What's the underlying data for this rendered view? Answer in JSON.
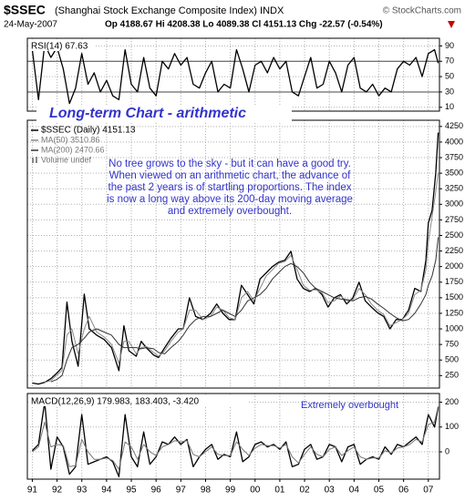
{
  "header": {
    "symbol": "$SSEC",
    "name": "(Shanghai Stock Exchange Composite Index) INDX",
    "source": "© StockCharts.com",
    "date": "24-May-2007",
    "quote": "Op 4188.67 Hi 4208.38 Lo 4089.38 Cl 4151.13 Chg -22.57 (-0.54%)"
  },
  "chart_data": [
    {
      "type": "line",
      "title": "RSI(14) 67.63",
      "x": [
        1991,
        1991.25,
        1991.5,
        1991.75,
        1992,
        1992.25,
        1992.5,
        1992.75,
        1993,
        1993.25,
        1993.5,
        1993.75,
        1994,
        1994.25,
        1994.5,
        1994.75,
        1995,
        1995.25,
        1995.5,
        1995.75,
        1996,
        1996.25,
        1996.5,
        1996.75,
        1997,
        1997.25,
        1997.5,
        1997.75,
        1998,
        1998.25,
        1998.5,
        1998.75,
        1999,
        1999.25,
        1999.5,
        1999.75,
        2000,
        2000.25,
        2000.5,
        2000.75,
        2001,
        2001.25,
        2001.5,
        2001.75,
        2002,
        2002.25,
        2002.5,
        2002.75,
        2003,
        2003.25,
        2003.5,
        2003.75,
        2004,
        2004.25,
        2004.5,
        2004.75,
        2005,
        2005.25,
        2005.5,
        2005.75,
        2006,
        2006.25,
        2006.5,
        2006.75,
        2007,
        2007.25,
        2007.4
      ],
      "series": [
        {
          "color": "#000000",
          "values": [
            85,
            20,
            92,
            75,
            88,
            60,
            15,
            35,
            80,
            40,
            55,
            30,
            45,
            25,
            20,
            85,
            40,
            30,
            75,
            35,
            25,
            70,
            60,
            80,
            65,
            75,
            40,
            35,
            55,
            70,
            30,
            40,
            35,
            85,
            60,
            30,
            65,
            70,
            55,
            75,
            60,
            70,
            30,
            25,
            50,
            75,
            35,
            40,
            70,
            55,
            30,
            65,
            75,
            35,
            30,
            40,
            25,
            35,
            30,
            60,
            70,
            65,
            75,
            50,
            80,
            85,
            67.63
          ]
        }
      ],
      "xlim": [
        1990.8,
        2007.45
      ],
      "ylim": [
        5,
        100
      ],
      "yticks": [
        10,
        30,
        50,
        70,
        90
      ],
      "grid": true
    },
    {
      "type": "line",
      "title": "Long-term Chart - arithmetic",
      "annotation": [
        "No tree grows to the sky - but it can have a good try.",
        "When viewed on an arithmetic chart, the advance of",
        "the past 2 years is of startling proportions. The index",
        "is now a long way above its 200-day moving average",
        "and extremely overbought."
      ],
      "legend_note": "Volume undef",
      "x": [
        1991.0,
        1991.25,
        1991.5,
        1991.75,
        1992.0,
        1992.2,
        1992.4,
        1992.6,
        1992.85,
        1993.1,
        1993.3,
        1993.6,
        1993.9,
        1994.2,
        1994.5,
        1994.7,
        1994.9,
        1995.2,
        1995.4,
        1995.6,
        1995.9,
        1996.1,
        1996.35,
        1996.6,
        1996.9,
        1997.1,
        1997.35,
        1997.6,
        1997.9,
        1998.2,
        1998.45,
        1998.7,
        1998.95,
        1999.2,
        1999.45,
        1999.7,
        1999.95,
        2000.2,
        2000.45,
        2000.7,
        2000.95,
        2001.2,
        2001.45,
        2001.7,
        2001.95,
        2002.2,
        2002.45,
        2002.7,
        2002.95,
        2003.2,
        2003.45,
        2003.7,
        2003.95,
        2004.2,
        2004.45,
        2004.7,
        2004.95,
        2005.2,
        2005.45,
        2005.7,
        2005.95,
        2006.2,
        2006.45,
        2006.7,
        2006.9,
        2007.0,
        2007.15,
        2007.3,
        2007.4
      ],
      "series": [
        {
          "name": "$SSEC (Daily) 4151.13",
          "color": "#000000",
          "values": [
            130,
            115,
            140,
            200,
            293,
            380,
            1429,
            800,
            400,
            1558,
            1000,
            900,
            830,
            700,
            330,
            1050,
            650,
            560,
            800,
            700,
            580,
            540,
            700,
            850,
            1000,
            1000,
            1500,
            1200,
            1150,
            1250,
            1400,
            1250,
            1150,
            1150,
            1700,
            1550,
            1400,
            1800,
            1900,
            2000,
            2070,
            2100,
            2245,
            1800,
            1650,
            1600,
            1650,
            1550,
            1350,
            1500,
            1550,
            1400,
            1500,
            1750,
            1450,
            1350,
            1260,
            1200,
            1000,
            1150,
            1150,
            1300,
            1650,
            1600,
            2100,
            2700,
            2900,
            3500,
            4151
          ]
        },
        {
          "name": "MA(50) 3510.86",
          "color": "#8a8a8a",
          "values": [
            null,
            null,
            140,
            170,
            260,
            330,
            900,
            1000,
            600,
            1000,
            1200,
            950,
            870,
            750,
            450,
            800,
            800,
            600,
            700,
            720,
            620,
            560,
            650,
            800,
            950,
            1000,
            1300,
            1300,
            1150,
            1200,
            1350,
            1300,
            1180,
            1150,
            1500,
            1600,
            1450,
            1650,
            1850,
            1950,
            2050,
            2080,
            2180,
            1950,
            1700,
            1620,
            1630,
            1580,
            1420,
            1450,
            1530,
            1450,
            1470,
            1650,
            1550,
            1400,
            1300,
            1230,
            1050,
            1100,
            1150,
            1250,
            1550,
            1620,
            1950,
            2400,
            2800,
            3200,
            3510
          ]
        },
        {
          "name": "MA(200) 2470.66",
          "color": "#333333",
          "values": [
            null,
            null,
            null,
            150,
            190,
            250,
            500,
            700,
            750,
            850,
            950,
            1000,
            950,
            900,
            750,
            700,
            700,
            700,
            680,
            700,
            680,
            620,
            600,
            700,
            800,
            900,
            1050,
            1150,
            1200,
            1200,
            1250,
            1300,
            1250,
            1200,
            1300,
            1450,
            1500,
            1550,
            1650,
            1800,
            1900,
            2000,
            2050,
            2000,
            1900,
            1750,
            1650,
            1600,
            1550,
            1500,
            1480,
            1470,
            1450,
            1500,
            1520,
            1480,
            1400,
            1330,
            1250,
            1180,
            1130,
            1150,
            1250,
            1400,
            1550,
            1700,
            1850,
            2100,
            2470
          ]
        }
      ],
      "xlim": [
        1990.8,
        2007.45
      ],
      "ylim": [
        50,
        4350
      ],
      "yticks": [
        250,
        500,
        750,
        1000,
        1250,
        1500,
        1750,
        2000,
        2250,
        2500,
        2750,
        3000,
        3250,
        3500,
        3750,
        4000,
        4250
      ],
      "grid": true
    },
    {
      "type": "line",
      "title": "MACD(12,26,9) 179.983, 183.403, -3.420",
      "annotation": "Extremely overbought",
      "x": [
        1991,
        1991.25,
        1991.5,
        1991.75,
        1992,
        1992.25,
        1992.5,
        1992.75,
        1993,
        1993.25,
        1993.5,
        1993.75,
        1994,
        1994.25,
        1994.5,
        1994.75,
        1995,
        1995.25,
        1995.5,
        1995.75,
        1996,
        1996.25,
        1996.5,
        1996.75,
        1997,
        1997.25,
        1997.5,
        1997.75,
        1998,
        1998.25,
        1998.5,
        1998.75,
        1999,
        1999.25,
        1999.5,
        1999.75,
        2000,
        2000.25,
        2000.5,
        2000.75,
        2001,
        2001.25,
        2001.5,
        2001.75,
        2002,
        2002.25,
        2002.5,
        2002.75,
        2003,
        2003.25,
        2003.5,
        2003.75,
        2004,
        2004.25,
        2004.5,
        2004.75,
        2005,
        2005.25,
        2005.5,
        2005.75,
        2006,
        2006.25,
        2006.5,
        2006.75,
        2007,
        2007.25,
        2007.4
      ],
      "series": [
        {
          "color": "#000000",
          "values": [
            5,
            30,
            200,
            -70,
            60,
            20,
            -90,
            -60,
            150,
            -50,
            -40,
            -30,
            -20,
            -40,
            -100,
            150,
            -20,
            -60,
            80,
            -50,
            -20,
            40,
            30,
            60,
            30,
            50,
            -60,
            -20,
            10,
            30,
            -30,
            -10,
            -20,
            80,
            -40,
            -20,
            30,
            40,
            20,
            30,
            10,
            40,
            -60,
            -50,
            10,
            30,
            -30,
            -20,
            30,
            20,
            -40,
            20,
            30,
            -50,
            -30,
            -20,
            -30,
            20,
            -10,
            30,
            20,
            40,
            60,
            30,
            150,
            100,
            179.983
          ]
        },
        {
          "color": "#777777",
          "values": [
            0,
            20,
            120,
            20,
            30,
            25,
            -60,
            -55,
            50,
            0,
            -30,
            -30,
            -25,
            -35,
            -70,
            40,
            20,
            -30,
            30,
            0,
            -15,
            20,
            30,
            45,
            40,
            45,
            -10,
            -20,
            0,
            20,
            -10,
            -15,
            -15,
            40,
            10,
            -15,
            15,
            30,
            25,
            25,
            15,
            30,
            -20,
            -45,
            -10,
            20,
            -10,
            -20,
            10,
            20,
            -15,
            5,
            20,
            -20,
            -30,
            -25,
            -25,
            5,
            -5,
            15,
            20,
            30,
            50,
            40,
            110,
            120,
            183.403
          ]
        }
      ],
      "xlim": [
        1990.8,
        2007.45
      ],
      "ylim": [
        -110,
        235
      ],
      "yticks": [
        0,
        100,
        200
      ],
      "grid": true,
      "xticks": [
        {
          "value": 1991,
          "label": "91"
        },
        {
          "value": 1992,
          "label": "92"
        },
        {
          "value": 1993,
          "label": "93"
        },
        {
          "value": 1994,
          "label": "94"
        },
        {
          "value": 1995,
          "label": "95"
        },
        {
          "value": 1996,
          "label": "96"
        },
        {
          "value": 1997,
          "label": "97"
        },
        {
          "value": 1998,
          "label": "98"
        },
        {
          "value": 1999,
          "label": "99"
        },
        {
          "value": 2000,
          "label": "00"
        },
        {
          "value": 2001,
          "label": "01"
        },
        {
          "value": 2002,
          "label": "02"
        },
        {
          "value": 2003,
          "label": "03"
        },
        {
          "value": 2004,
          "label": "04"
        },
        {
          "value": 2005,
          "label": "05"
        },
        {
          "value": 2006,
          "label": "06"
        },
        {
          "value": 2007,
          "label": "07"
        }
      ]
    }
  ]
}
